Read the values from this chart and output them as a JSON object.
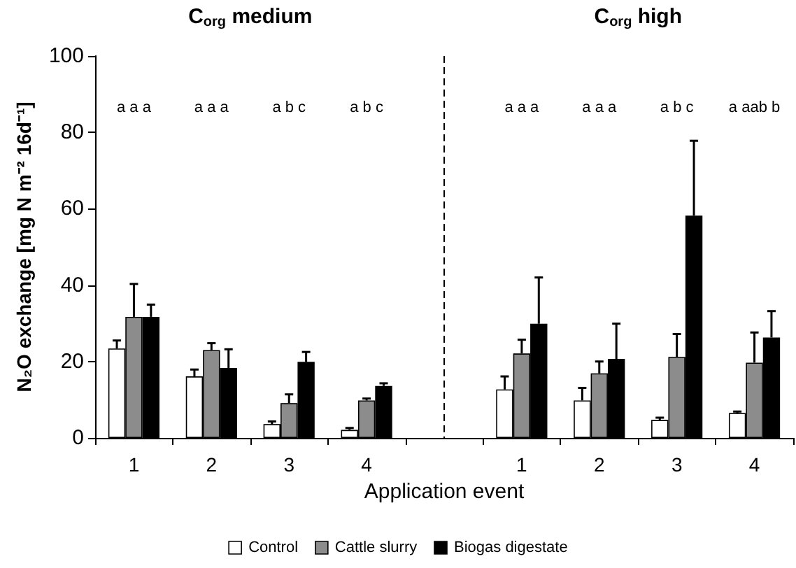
{
  "chart_data": {
    "type": "bar",
    "categories": [
      "1",
      "2",
      "3",
      "4",
      null,
      "1",
      "2",
      "3",
      "4"
    ],
    "xlabel": "Application event",
    "ylabel": "N₂O exchange [mg N m⁻² 16d⁻¹]",
    "ylim": [
      0,
      100
    ],
    "yticks": [
      0,
      20,
      40,
      60,
      80,
      100
    ],
    "legend": "bottom",
    "series": [
      {
        "name": "Control",
        "color": "#ffffff",
        "values": [
          23.4,
          16.1,
          3.6,
          2.1,
          null,
          12.7,
          9.8,
          4.7,
          6.5
        ],
        "errors": [
          [
            23.4,
            25.5
          ],
          [
            16.1,
            17.9
          ],
          [
            3.6,
            4.3
          ],
          [
            2.1,
            2.6
          ],
          null,
          [
            12.7,
            16.1
          ],
          [
            9.8,
            13.1
          ],
          [
            4.7,
            5.3
          ],
          [
            6.5,
            6.9
          ]
        ]
      },
      {
        "name": "Cattle slurry",
        "color": "#8c8c8c",
        "values": [
          31.7,
          23.0,
          9.1,
          9.8,
          null,
          22.1,
          16.9,
          21.2,
          19.7
        ],
        "errors": [
          [
            31.7,
            40.3
          ],
          [
            23.0,
            24.8
          ],
          [
            9.1,
            11.4
          ],
          [
            9.8,
            10.3
          ],
          null,
          [
            22.1,
            25.7
          ],
          [
            16.9,
            20.0
          ],
          [
            21.2,
            27.2
          ],
          [
            19.7,
            27.6
          ]
        ]
      },
      {
        "name": "Biogas digestate",
        "color": "#000000",
        "values": [
          31.7,
          18.3,
          19.9,
          13.6,
          null,
          29.9,
          20.7,
          58.2,
          26.3
        ],
        "errors": [
          [
            31.7,
            34.9
          ],
          [
            18.3,
            23.2
          ],
          [
            19.9,
            22.5
          ],
          [
            13.6,
            14.3
          ],
          null,
          [
            29.9,
            42.0
          ],
          [
            20.7,
            29.9
          ],
          [
            58.2,
            77.8
          ],
          [
            26.3,
            33.2
          ]
        ]
      }
    ],
    "ref_lines": [
      {
        "axis": "x",
        "value": null,
        "line_style": "dashed",
        "color": "#000000"
      }
    ],
    "annotations": [
      "C$_{org}$ medium",
      "C$_{org}$ high",
      "a a a",
      "a a a",
      "a b c",
      "a b c",
      "a a a",
      "a a a",
      "a b c",
      "a aab b"
    ]
  }
}
